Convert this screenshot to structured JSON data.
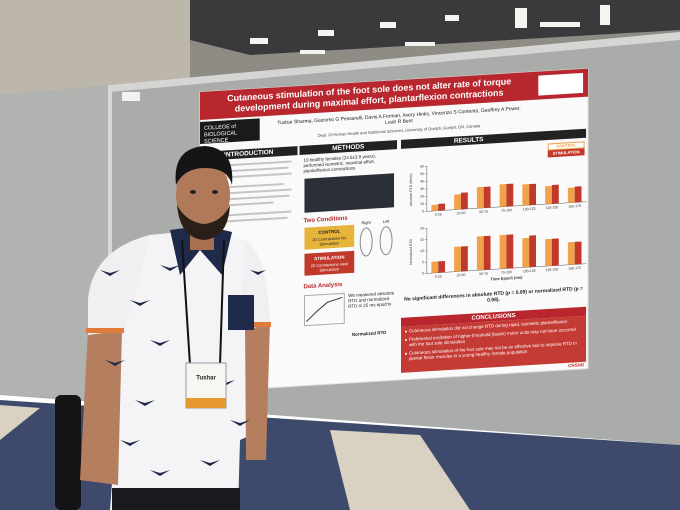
{
  "poster": {
    "title": "Cutaneous stimulation of the foot sole does not alter rate of torque development during maximal effort, plantarflexion contractions",
    "logo": "COLLEGE of BIOLOGICAL SCIENCE",
    "authors": "Tushar Sharma, Giacomo G Pessarelli, Davis A Forman, Avery Hinks, Vincenzo S Contento, Geoffrey A Power, Leah R Bent",
    "affiliation": "Dept. Of Human Health and Nutritional Sciences, University of Guelph, Guelph, ON, Canada",
    "introduction": {
      "heading": "INTRODUCTION"
    },
    "methods": {
      "heading": "METHODS",
      "participants": "10 healthy females (24.5±3.9 years), performed isometric, maximal-effort, plantarflexion contractions",
      "conditions_heading": "Two Conditions",
      "control": {
        "name": "CONTROL",
        "detail": "20 Contractions No Stimulation"
      },
      "stimulation": {
        "name": "STIMULATION",
        "detail": "20 Contractions Heel Stimulation"
      },
      "feet": [
        "Right",
        "Left"
      ],
      "analysis_heading": "Data Analysis",
      "analysis": "We measured absolute RTD and normalized RTD in 25 ms epochs",
      "normalized": "Normalized RTD"
    },
    "results": {
      "heading": "RESULTS",
      "charts": [
        {
          "type": "bar",
          "ylabel": "Absolute RTD (Nm/s)",
          "categories": [
            "0-25",
            "25-50",
            "50-75",
            "75-100",
            "100-125",
            "125-150",
            "150-175"
          ],
          "series": [
            {
              "name": "CONTROL",
              "color": "#f0a24a",
              "values": [
                8,
                20,
                28,
                30,
                28,
                24,
                20
              ]
            },
            {
              "name": "STIMULATION",
              "color": "#c0392b",
              "values": [
                9,
                22,
                28,
                30,
                28,
                25,
                21
              ]
            }
          ],
          "ylim": [
            0,
            60
          ],
          "yticks": [
            0,
            10,
            20,
            30,
            40,
            50,
            60
          ]
        },
        {
          "type": "bar",
          "ylabel": "Normalized RTD",
          "xlabel": "Time Epoch (ms)",
          "categories": [
            "0-25",
            "25-50",
            "50-75",
            "75-100",
            "100-125",
            "125-150",
            "150-175"
          ],
          "series": [
            {
              "name": "CONTROL",
              "color": "#f0a24a",
              "values": [
                5,
                11,
                15,
                15,
                13,
                12,
                10
              ]
            },
            {
              "name": "STIMULATION",
              "color": "#c0392b",
              "values": [
                5,
                11,
                15,
                15,
                14,
                12,
                10
              ]
            }
          ],
          "ylim": [
            0,
            20
          ],
          "yticks": [
            0,
            5,
            10,
            15,
            20
          ]
        }
      ],
      "finding": "No significant differences in absolute RTD (p = 0.69) or normalized RTD (p = 0.98)."
    },
    "conclusions": {
      "heading": "CONCLUSIONS",
      "bullets": [
        "Cutaneous stimulation did not change RTD during rapid, isometric plantarflexion",
        "Preferential excitation of higher-threshold (faster) motor units may not have occurred with the foot sole stimulation",
        "Cutaneous stimulation of the foot sole may not be an effective tool to improve RTD in plantar flexor muscles in a young healthy, female population"
      ]
    },
    "funder": "NSERC CRSNG"
  },
  "badge": "Tushar"
}
